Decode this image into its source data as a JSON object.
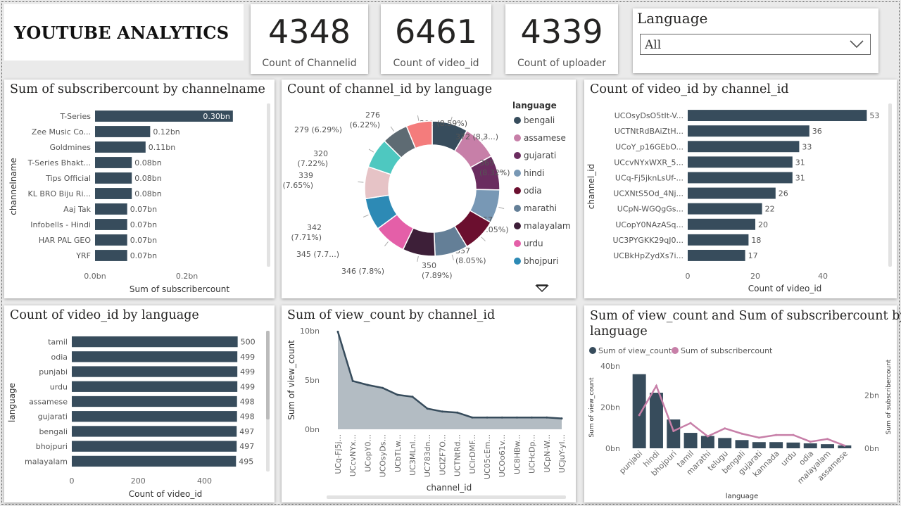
{
  "app": {
    "title": "YOUTUBE ANALYTICS"
  },
  "kpis": [
    {
      "value": "4348",
      "label": "Count of Channelid"
    },
    {
      "value": "6461",
      "label": "Count of video_id"
    },
    {
      "value": "4339",
      "label": "Count of uploader"
    }
  ],
  "slicer": {
    "title": "Language",
    "selected": "All",
    "icon": "chevron-down-icon"
  },
  "colors": {
    "bar": "#374c5c",
    "accent": "#c77fa8",
    "area": "#b3bcc3"
  },
  "panels": {
    "p1": {
      "title": "Sum of subscribercount by channelname"
    },
    "p2": {
      "title": "Count of channel_id by language"
    },
    "p3": {
      "title": "Count of video_id by channel_id"
    },
    "p4": {
      "title": "Count of video_id by language"
    },
    "p5": {
      "title": "Sum of view_count by channel_id"
    },
    "p6": {
      "title_line1": "Sum of view_count and Sum of subscribercount by",
      "title_line2": "language"
    }
  },
  "chart_data": [
    {
      "id": "subs_by_channel",
      "type": "bar",
      "orientation": "horizontal",
      "title": "Sum of subscribercount by channelname",
      "xlabel": "Sum of subscribercount",
      "ylabel": "channelname",
      "categories": [
        "T-Series",
        "Zee Music Co...",
        "Goldmines",
        "T-Series Bhakt...",
        "Tips Official",
        "KL BRO Biju Ri...",
        "Aaj Tak",
        "Infobells - Hindi",
        "HAR PAL GEO",
        "YRF"
      ],
      "values": [
        0.3,
        0.12,
        0.11,
        0.08,
        0.08,
        0.08,
        0.07,
        0.07,
        0.07,
        0.07
      ],
      "data_labels": [
        "0.30bn",
        "0.12bn",
        "0.11bn",
        "0.08bn",
        "0.08bn",
        "0.08bn",
        "0.07bn",
        "0.07bn",
        "0.07bn",
        "0.07bn"
      ],
      "xlim": [
        0,
        0.36
      ],
      "x_ticks": [
        {
          "v": 0,
          "label": "0.0bn"
        },
        {
          "v": 0.2,
          "label": "0.2bn"
        }
      ]
    },
    {
      "id": "channels_by_language",
      "type": "pie",
      "donut": true,
      "title": "Count of channel_id by language",
      "legend_title": "language",
      "legend_position": "right",
      "slices": [
        {
          "label": "bengali",
          "value": 381,
          "text": "381 (8.59%)",
          "color": "#374c5c"
        },
        {
          "label": "assamese",
          "value": 372,
          "text": "372 (8.3...)",
          "color": "#c77fa8"
        },
        {
          "label": "gujarati",
          "value": 369,
          "text_line1": "369",
          "text_line2": "(8.32%)",
          "color": "#6a2c5f"
        },
        {
          "label": "hindi",
          "value": 357,
          "text_line1": "357",
          "text_line2": "(8.05%)",
          "color": "#7898b5"
        },
        {
          "label": "odia",
          "value": 357,
          "text_line1": "357",
          "text_line2": "(8.05%)",
          "color": "#6b0f2f"
        },
        {
          "label": "marathi",
          "value": 350,
          "text_line1": "350",
          "text_line2": "(7.89%)",
          "color": "#647f97"
        },
        {
          "label": "malayalam",
          "value": 346,
          "text": "346 (7.8%)",
          "color": "#3d1f38"
        },
        {
          "label": "urdu",
          "value": 345,
          "text": "345 (7.7...)",
          "color": "#e45fa8"
        },
        {
          "label": "bhojpuri",
          "value": 342,
          "text_line1": "342",
          "text_line2": "(7.71%)",
          "color": "#2d8ab5"
        },
        {
          "label": "",
          "value": 339,
          "text_line1": "339",
          "text_line2": "(7.65%)",
          "color": "#e6c3c6"
        },
        {
          "label": "",
          "value": 320,
          "text_line1": "320",
          "text_line2": "(7.22%)",
          "color": "#4ec8c0"
        },
        {
          "label": "",
          "value": 279,
          "text": "279 (6.29%)",
          "color": "#5e6b73"
        },
        {
          "label": "",
          "value": 276,
          "text_line1": "276",
          "text_line2": "(6.22%)",
          "color": "#f47c7c"
        }
      ]
    },
    {
      "id": "videos_by_channel",
      "type": "bar",
      "orientation": "horizontal",
      "title": "Count of video_id by channel_id",
      "xlabel": "Count of video_id",
      "ylabel": "channel_id",
      "categories": [
        "UCOsyDsO5tIt-V...",
        "UCTNtRdBAiZtH...",
        "UCoY_p16GEbO...",
        "UCcvNYxWXR_5...",
        "UCq-Fj5jknLsUf-...",
        "UCXNtS5Od_4Nj...",
        "UCpN-WGQgGs...",
        "UCopY0NAzASq...",
        "UC3PYGKK29qJ0...",
        "UCBkHpZydXs7i..."
      ],
      "values": [
        53,
        36,
        33,
        31,
        31,
        26,
        22,
        20,
        18,
        17
      ],
      "xlim": [
        0,
        55
      ],
      "x_ticks": [
        0,
        20,
        40
      ]
    },
    {
      "id": "videos_by_language",
      "type": "bar",
      "orientation": "horizontal",
      "title": "Count of video_id by language",
      "xlabel": "Count of video_id",
      "ylabel": "language",
      "categories": [
        "tamil",
        "odia",
        "punjabi",
        "urdu",
        "assamese",
        "gujarati",
        "bengali",
        "bhojpuri",
        "malayalam"
      ],
      "values": [
        500,
        499,
        499,
        499,
        498,
        498,
        497,
        497,
        495
      ],
      "xlim": [
        0,
        505
      ],
      "x_ticks": [
        0,
        200,
        400
      ]
    },
    {
      "id": "views_by_channel",
      "type": "area",
      "title": "Sum of view_count by channel_id",
      "xlabel": "channel_id",
      "ylabel": "Sum of view_count",
      "categories": [
        "UCq-Fj5j...",
        "UCcvNYx...",
        "UCopY0...",
        "UCOsyDs...",
        "UCbTLw...",
        "UC3MLnl...",
        "UC783dn...",
        "UCIZF7O...",
        "UCTNtRd...",
        "UCIrDMF...",
        "UC05cEm...",
        "UCOo61v...",
        "UC8HBw...",
        "UCHcDp...",
        "UCpN-W...",
        "UCjuY-yI..."
      ],
      "values": [
        9.9,
        4.9,
        4.5,
        4.2,
        3.5,
        3.3,
        2.1,
        1.8,
        1.7,
        1.2,
        1.2,
        1.2,
        1.2,
        1.2,
        1.2,
        1.1
      ],
      "ylim": [
        0,
        10
      ],
      "y_ticks": [
        {
          "v": 0,
          "label": "0bn"
        },
        {
          "v": 5,
          "label": "5bn"
        },
        {
          "v": 10,
          "label": "10bn"
        }
      ]
    },
    {
      "id": "views_subs_by_language",
      "type": "bar",
      "combo": "bar+line",
      "title": "Sum of view_count and Sum of subscribercount by language",
      "xlabel": "language",
      "ylabel": "Sum of view_count",
      "y2label": "Sum of subscribercount",
      "legend_position": "top-left",
      "categories": [
        "punjabi",
        "hindi",
        "bhojpuri",
        "tamil",
        "marathi",
        "telugu",
        "bengali",
        "gujarati",
        "kannada",
        "urdu",
        "odia",
        "malayalam",
        "assamese"
      ],
      "series": [
        {
          "name": "Sum of view_count",
          "type": "bar",
          "axis": "left",
          "values": [
            36,
            27,
            14,
            7.5,
            6,
            5,
            4,
            3,
            3,
            2.8,
            2.4,
            2,
            1.4
          ],
          "color": "#374c5c"
        },
        {
          "name": "Sum of subscribercount",
          "type": "line",
          "axis": "right",
          "values": [
            1.25,
            2.35,
            0.65,
            0.95,
            0.45,
            0.75,
            0.55,
            0.4,
            0.5,
            0.5,
            0.25,
            0.35,
            0.1
          ],
          "color": "#c77fa8"
        }
      ],
      "ylim": [
        0,
        40
      ],
      "y2lim": [
        0,
        3.1
      ],
      "y_ticks": [
        {
          "v": 0,
          "label": "0bn"
        },
        {
          "v": 20,
          "label": "20bn"
        },
        {
          "v": 40,
          "label": "40bn"
        }
      ],
      "y2_ticks": [
        {
          "v": 0,
          "label": "0bn"
        },
        {
          "v": 2,
          "label": "2bn"
        }
      ]
    }
  ]
}
